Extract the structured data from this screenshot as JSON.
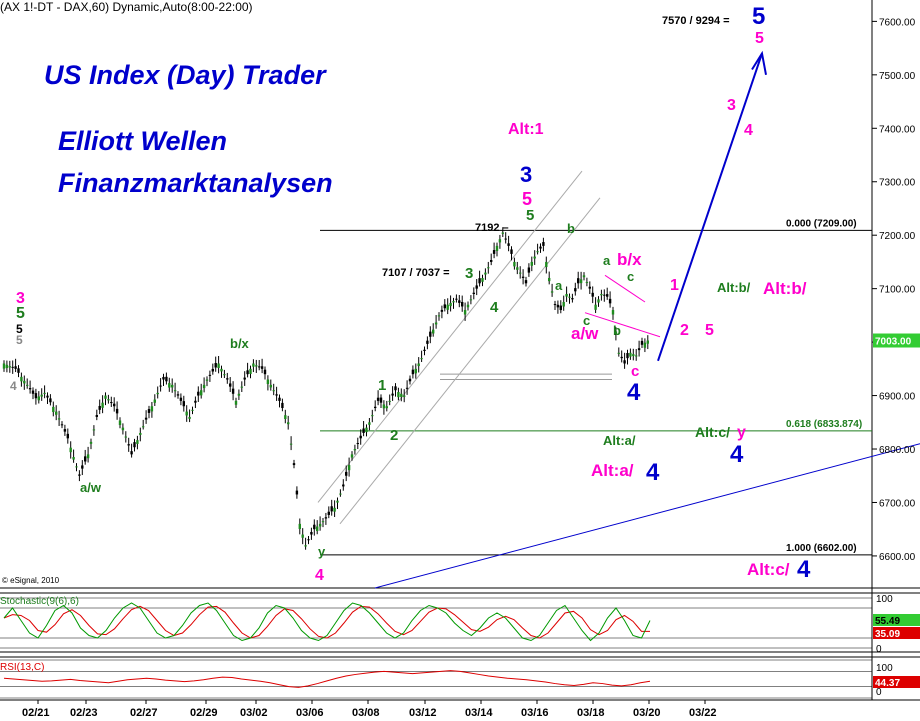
{
  "header": {
    "instrument": "(AX 1!-DT - DAX,60) Dynamic,Auto(8:00-22:00)",
    "copyright": "© eSignal, 2010"
  },
  "branding": {
    "line1": "US Index (Day) Trader",
    "line2": "Elliott Wellen",
    "line3": "Finanzmarktanalysen"
  },
  "colors": {
    "background": "#ffffff",
    "candle": "#000000",
    "brand_blue": "#0000cc",
    "wave_green": "#1e7d1e",
    "wave_magenta": "#ff00cc",
    "wave_blue": "#0000cc",
    "stoch_k": "#009900",
    "stoch_d": "#dd0000",
    "rsi": "#dd0000",
    "last_price_bg": "#33cc33"
  },
  "chart_data": {
    "type": "candlestick",
    "timeframe": "60 min",
    "x_tick_labels": [
      "02/21",
      "02/23",
      "02/27",
      "02/29",
      "03/02",
      "03/06",
      "03/08",
      "03/12",
      "03/14",
      "03/16",
      "03/18",
      "03/20",
      "03/22"
    ],
    "y_axis": {
      "min": 6540,
      "max": 7640,
      "ticks": [
        6600,
        6700,
        6800,
        6900,
        7000,
        7100,
        7200,
        7300,
        7400,
        7500,
        7600
      ],
      "tick_labels": [
        "6600.00",
        "6700.00",
        "6800.00",
        "6900.00",
        "7000.00",
        "7100.00",
        "7200.00",
        "7300.00",
        "7400.00",
        "7500.00",
        "7600.00"
      ]
    },
    "last_price": 7003.0,
    "last_price_label": "7003.00",
    "close_path": [
      [
        0,
        6960
      ],
      [
        4,
        6950
      ],
      [
        8,
        6920
      ],
      [
        11,
        6895
      ],
      [
        14,
        6905
      ],
      [
        18,
        6870
      ],
      [
        22,
        6820
      ],
      [
        26,
        6750
      ],
      [
        29,
        6790
      ],
      [
        32,
        6860
      ],
      [
        35,
        6900
      ],
      [
        38,
        6880
      ],
      [
        41,
        6840
      ],
      [
        44,
        6790
      ],
      [
        47,
        6830
      ],
      [
        51,
        6880
      ],
      [
        55,
        6930
      ],
      [
        58,
        6920
      ],
      [
        61,
        6890
      ],
      [
        64,
        6860
      ],
      [
        67,
        6900
      ],
      [
        70,
        6930
      ],
      [
        74,
        6960
      ],
      [
        77,
        6930
      ],
      [
        80,
        6890
      ],
      [
        83,
        6930
      ],
      [
        86,
        6960
      ],
      [
        89,
        6950
      ],
      [
        92,
        6920
      ],
      [
        95,
        6890
      ],
      [
        98,
        6850
      ],
      [
        100,
        6770
      ],
      [
        102,
        6660
      ],
      [
        104,
        6620
      ],
      [
        107,
        6650
      ],
      [
        111,
        6670
      ],
      [
        114,
        6690
      ],
      [
        117,
        6730
      ],
      [
        120,
        6790
      ],
      [
        123,
        6820
      ],
      [
        126,
        6850
      ],
      [
        129,
        6890
      ],
      [
        132,
        6880
      ],
      [
        135,
        6910
      ],
      [
        138,
        6900
      ],
      [
        141,
        6940
      ],
      [
        144,
        6970
      ],
      [
        147,
        7010
      ],
      [
        150,
        7050
      ],
      [
        153,
        7070
      ],
      [
        156,
        7080
      ],
      [
        159,
        7060
      ],
      [
        162,
        7090
      ],
      [
        165,
        7120
      ],
      [
        168,
        7150
      ],
      [
        170,
        7180
      ],
      [
        172,
        7205
      ],
      [
        174,
        7180
      ],
      [
        176,
        7150
      ],
      [
        178,
        7130
      ],
      [
        180,
        7110
      ],
      [
        182,
        7150
      ],
      [
        184,
        7170
      ],
      [
        186,
        7180
      ],
      [
        188,
        7120
      ],
      [
        190,
        7070
      ],
      [
        192,
        7060
      ],
      [
        194,
        7090
      ],
      [
        196,
        7080
      ],
      [
        198,
        7110
      ],
      [
        200,
        7125
      ],
      [
        202,
        7100
      ],
      [
        204,
        7070
      ],
      [
        206,
        7090
      ],
      [
        208,
        7085
      ],
      [
        210,
        7060
      ],
      [
        212,
        6980
      ],
      [
        214,
        6960
      ],
      [
        216,
        6980
      ],
      [
        218,
        6975
      ],
      [
        220,
        6995
      ],
      [
        222,
        7003
      ]
    ],
    "horizontal_levels": [
      {
        "value": 7209.0,
        "label": "0.000 (7209.00)"
      },
      {
        "value": 6833.874,
        "label": "0.618 (6833.874)"
      },
      {
        "value": 6602.0,
        "label": "1.000 (6602.00)"
      }
    ],
    "stochastic": {
      "label": "Stochastic(9(6),6)",
      "ticks": [
        "100",
        "80",
        "20",
        "0"
      ],
      "k_last": 55.49,
      "k_last_label": "55.49",
      "d_last": 35.09,
      "d_last_label": "35.09",
      "k_values": [
        60,
        80,
        55,
        30,
        20,
        45,
        75,
        85,
        70,
        40,
        25,
        20,
        35,
        60,
        80,
        90,
        80,
        55,
        30,
        20,
        25,
        45,
        70,
        85,
        90,
        75,
        50,
        25,
        15,
        20,
        40,
        70,
        85,
        80,
        60,
        35,
        20,
        15,
        25,
        50,
        75,
        90,
        85,
        70,
        50,
        30,
        20,
        30,
        55,
        75,
        85,
        80,
        70,
        50,
        35,
        25,
        40,
        60,
        70,
        60,
        40,
        20,
        15,
        25,
        50,
        75,
        85,
        60,
        35,
        15,
        30,
        60,
        80,
        55,
        25,
        20,
        55
      ]
    },
    "rsi": {
      "label": "RSI(13,C)",
      "ticks": [
        "100",
        "70",
        "30",
        "0"
      ],
      "last": 44.37,
      "last_label": "44.37",
      "values": [
        52,
        50,
        48,
        46,
        44,
        45,
        47,
        49,
        46,
        44,
        42,
        40,
        44,
        48,
        50,
        52,
        50,
        47,
        45,
        43,
        45,
        48,
        52,
        55,
        54,
        50,
        47,
        44,
        40,
        35,
        30,
        28,
        32,
        38,
        45,
        52,
        58,
        62,
        65,
        68,
        70,
        68,
        66,
        64,
        66,
        68,
        70,
        72,
        70,
        66,
        62,
        58,
        55,
        52,
        50,
        48,
        45,
        42,
        38,
        35,
        33,
        36,
        40,
        38,
        34,
        32,
        35,
        40,
        44
      ]
    },
    "annotations": {
      "price_target": "7570 / 9294 =",
      "price_level_7192": "7192 –",
      "price_level_7107": "7107 / 7037 =",
      "alt1": "Alt:1",
      "altb": "Alt:b/",
      "altb_magenta": "Alt:b/",
      "alta_green": "Alt:a/",
      "alta_magenta": "Alt:a/",
      "alta_blue": "4",
      "altc_green": "Alt:c/",
      "altc_y": "y",
      "altc_magenta": "Alt:c/",
      "altc_blue": "4",
      "wave_labels": [
        {
          "t": "3",
          "c": "magenta"
        },
        {
          "t": "5",
          "c": "green"
        },
        {
          "t": "5",
          "c": "black"
        },
        {
          "t": "5",
          "c": "gray"
        },
        {
          "t": "4",
          "c": "gray"
        },
        {
          "t": "a/w",
          "c": "green"
        },
        {
          "t": "b/x",
          "c": "green"
        },
        {
          "t": "y",
          "c": "green"
        },
        {
          "t": "4",
          "c": "magenta"
        },
        {
          "t": "1",
          "c": "green"
        },
        {
          "t": "2",
          "c": "green"
        },
        {
          "t": "3",
          "c": "green"
        },
        {
          "t": "4",
          "c": "green"
        },
        {
          "t": "3",
          "c": "blue"
        },
        {
          "t": "5",
          "c": "magenta"
        },
        {
          "t": "5",
          "c": "green"
        },
        {
          "t": "b",
          "c": "green"
        },
        {
          "t": "a",
          "c": "green"
        },
        {
          "t": "c",
          "c": "green"
        },
        {
          "t": "a",
          "c": "green"
        },
        {
          "t": "c",
          "c": "green"
        },
        {
          "t": "b",
          "c": "green"
        },
        {
          "t": "b/x",
          "c": "magenta"
        },
        {
          "t": "a/w",
          "c": "magenta"
        },
        {
          "t": "c",
          "c": "magenta"
        },
        {
          "t": "4",
          "c": "blue"
        },
        {
          "t": "1",
          "c": "magenta"
        },
        {
          "t": "2",
          "c": "magenta"
        },
        {
          "t": "5",
          "c": "magenta"
        },
        {
          "t": "3",
          "c": "magenta"
        },
        {
          "t": "4",
          "c": "magenta"
        },
        {
          "t": "5",
          "c": "blue"
        },
        {
          "t": "5",
          "c": "magenta"
        },
        {
          "t": "4",
          "c": "blue"
        }
      ]
    }
  }
}
